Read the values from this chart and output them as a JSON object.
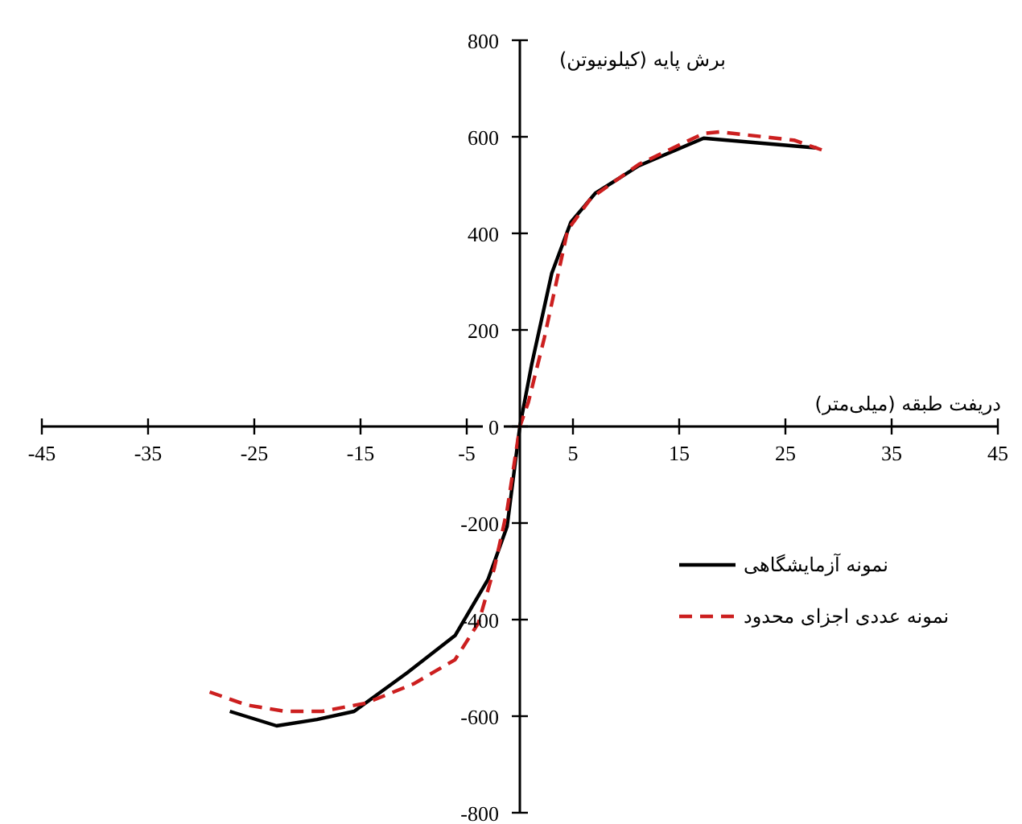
{
  "chart_data": {
    "type": "line",
    "xlabel": "دریفت طبقه (میلی‌متر)",
    "ylabel": "برش پایه (کیلونیوتن)",
    "xlim": [
      -45,
      45
    ],
    "xticks": [
      -45,
      -35,
      -25,
      -15,
      -5,
      5,
      15,
      25,
      35,
      45
    ],
    "ylim": [
      -800,
      800
    ],
    "yticks": [
      -800,
      -600,
      -400,
      -200,
      0,
      200,
      400,
      600,
      800
    ],
    "grid": false,
    "legend": "right",
    "marker": "none",
    "series": [
      {
        "name": "نمونه آزمایشگاهی",
        "color": "#000000",
        "line_style": "solid",
        "x": [
          -27.3,
          -22.9,
          -19.1,
          -15.6,
          -10.6,
          -6.1,
          -3,
          -1.2,
          0,
          1.1,
          3,
          4.8,
          7.1,
          11.2,
          17.3,
          27.9
        ],
        "values": [
          -590,
          -620,
          -607,
          -590,
          -510,
          -433,
          -317,
          -207,
          0,
          127,
          317,
          423,
          483,
          540,
          597,
          577
        ]
      },
      {
        "name": "نمونه عددی اجزای محدود",
        "color": "#cc1f1f",
        "line_style": "dashed",
        "x": [
          -29.2,
          -25.7,
          -22.1,
          -18.6,
          -14.5,
          -10,
          -6.1,
          -3.9,
          -2.4,
          -1.2,
          0,
          0.8,
          2.3,
          4.5,
          6.7,
          11.2,
          17.3,
          18.8,
          25.8,
          28.8
        ],
        "values": [
          -550,
          -577,
          -590,
          -590,
          -573,
          -533,
          -483,
          -407,
          -293,
          -173,
          0,
          50,
          183,
          407,
          473,
          543,
          607,
          610,
          593,
          570
        ]
      }
    ]
  }
}
